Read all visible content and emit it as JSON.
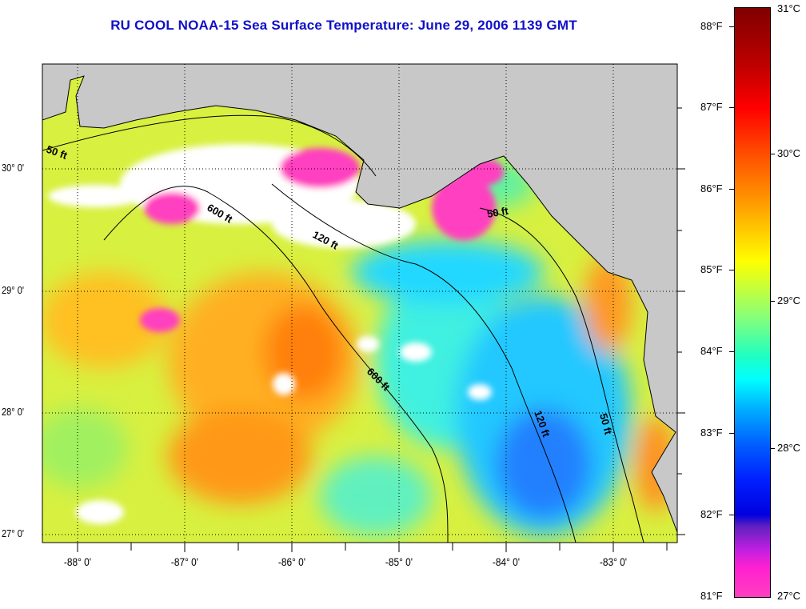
{
  "title": "RU COOL  NOAA-15  Sea Surface Temperature:  June 29, 2006 1139 GMT",
  "axes": {
    "lat_labels": [
      "30° 0'",
      "29° 0'",
      "28° 0'",
      "27° 0'"
    ],
    "lon_labels": [
      "-88° 0'",
      "-87° 0'",
      "-86° 0'",
      "-85° 0'",
      "-84° 0'",
      "-83° 0'"
    ]
  },
  "contours": {
    "labels": [
      "50 ft",
      "600 ft",
      "120 ft",
      "50 ft",
      "600 ft",
      "120 ft",
      "50 ft"
    ]
  },
  "colorbar": {
    "fahrenheit_labels": [
      "88°F",
      "87°F",
      "86°F",
      "85°F",
      "84°F",
      "83°F",
      "82°F",
      "81°F"
    ],
    "celsius_labels": [
      "31°C",
      "30°C",
      "29°C",
      "28°C",
      "27°C"
    ],
    "range_c": [
      27,
      31
    ],
    "colors": {
      "land": "#c8c8c8",
      "cloud": "#ffffff",
      "title": "#1010c8"
    }
  }
}
